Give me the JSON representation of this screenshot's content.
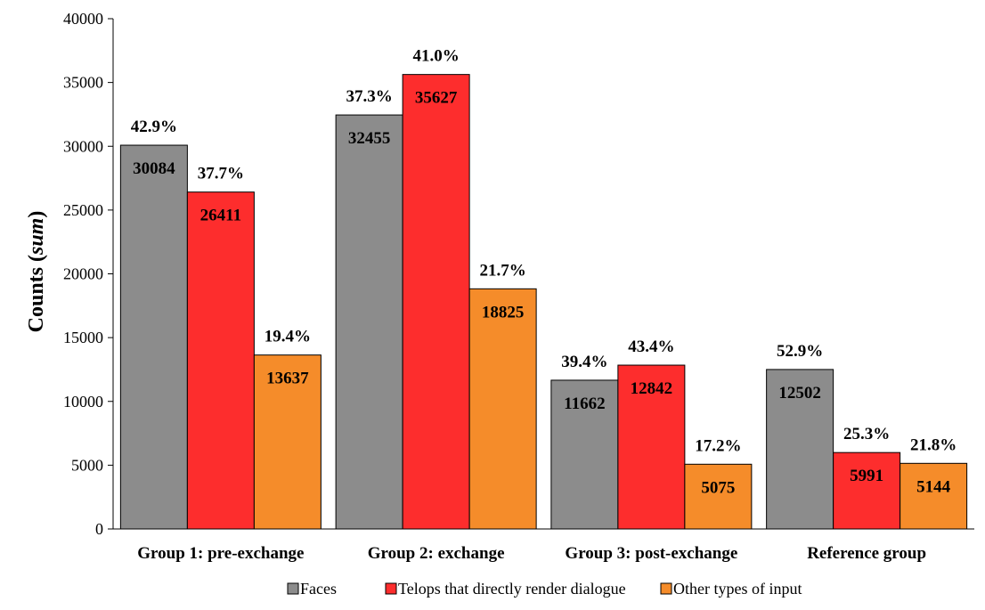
{
  "chart_data": {
    "type": "bar",
    "title": "",
    "xlabel": "",
    "ylabel": "Counts ",
    "ylabel_italic": "sum",
    "ylim": [
      0,
      40000
    ],
    "yticks": [
      0,
      5000,
      10000,
      15000,
      20000,
      25000,
      30000,
      35000,
      40000
    ],
    "grid": false,
    "legend_position": "bottom",
    "categories": [
      "Group 1: pre-exchange",
      "Group 2: exchange",
      "Group 3: post-exchange",
      "Reference group"
    ],
    "series": [
      {
        "name": "Faces",
        "color": "#8c8c8c",
        "values": [
          30084,
          32455,
          11662,
          12502
        ],
        "percent_labels": [
          "42.9%",
          "37.3%",
          "39.4%",
          "52.9%"
        ]
      },
      {
        "name": "Telops that directly render dialogue",
        "color": "#fd2d2d",
        "values": [
          26411,
          35627,
          12842,
          5991
        ],
        "percent_labels": [
          "37.7%",
          "41.0%",
          "43.4%",
          "25.3%"
        ]
      },
      {
        "name": "Other types of input",
        "color": "#f58c2a",
        "values": [
          13637,
          18825,
          5075,
          5144
        ],
        "percent_labels": [
          "19.4%",
          "21.7%",
          "17.2%",
          "21.8%"
        ]
      }
    ]
  }
}
